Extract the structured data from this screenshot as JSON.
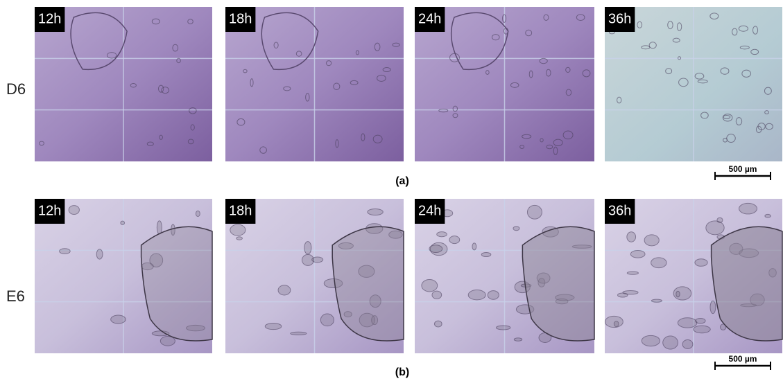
{
  "rows": [
    {
      "label": "D6",
      "caption": "(a)",
      "scale_bar": "500 µm",
      "panels": [
        "12h",
        "18h",
        "24h",
        "36h"
      ]
    },
    {
      "label": "E6",
      "caption": "(b)",
      "scale_bar": "500 µm",
      "panels": [
        "12h",
        "18h",
        "24h",
        "36h"
      ]
    }
  ]
}
